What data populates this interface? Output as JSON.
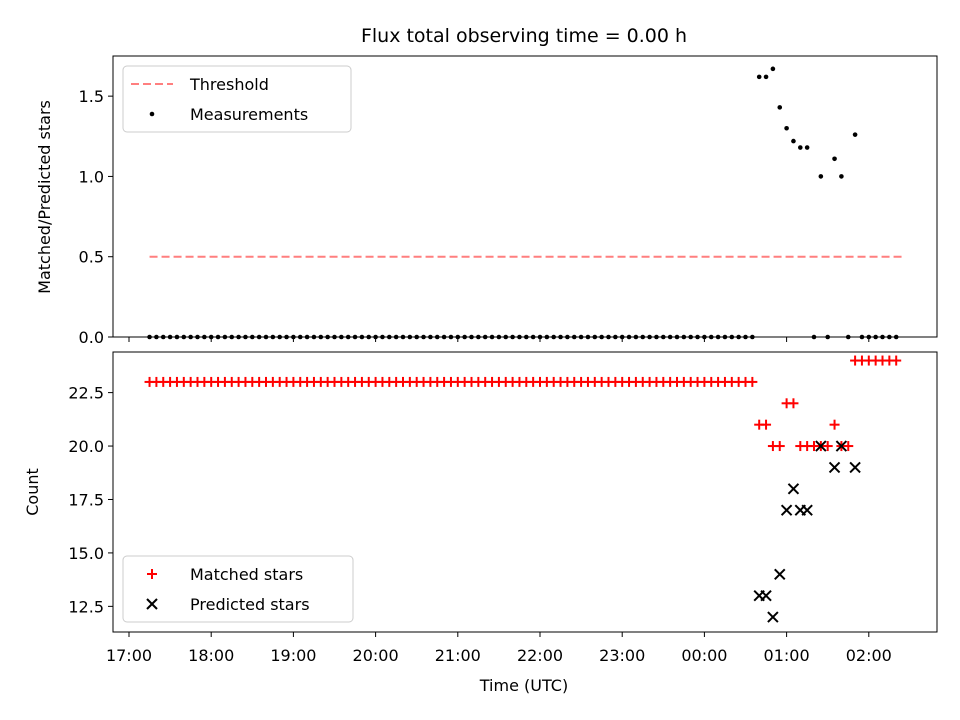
{
  "title": "Flux total observing time = 0.00 h",
  "chart_data": [
    {
      "type": "scatter",
      "ylabel": "Matched/Predicted stars",
      "ylim": [
        0,
        1.75
      ],
      "yticks": [
        "0.0",
        "0.5",
        "1.0",
        "1.5"
      ],
      "legend": {
        "position": "upper left",
        "entries": [
          "Threshold",
          "Measurements"
        ]
      },
      "threshold": {
        "name": "Threshold",
        "value": 0.5,
        "color": "#ff7f7f",
        "x_start": "17:15",
        "x_end": "02:25"
      },
      "measurements": {
        "name": "Measurements",
        "color": "#000000",
        "zero_run": {
          "start": "17:15",
          "end": "00:35",
          "step_minutes": 5,
          "value": 0
        },
        "points": [
          [
            "00:40",
            1.62
          ],
          [
            "00:45",
            1.62
          ],
          [
            "00:50",
            1.67
          ],
          [
            "00:55",
            1.43
          ],
          [
            "01:00",
            1.3
          ],
          [
            "01:05",
            1.22
          ],
          [
            "01:10",
            1.18
          ],
          [
            "01:15",
            1.18
          ],
          [
            "01:20",
            0
          ],
          [
            "01:25",
            1.0
          ],
          [
            "01:30",
            0
          ],
          [
            "01:35",
            1.11
          ],
          [
            "01:40",
            1.0
          ],
          [
            "01:45",
            0
          ],
          [
            "01:50",
            1.26
          ],
          [
            "01:55",
            0
          ],
          [
            "02:00",
            0
          ],
          [
            "02:05",
            0
          ],
          [
            "02:10",
            0
          ],
          [
            "02:15",
            0
          ],
          [
            "02:20",
            0
          ]
        ]
      }
    },
    {
      "type": "scatter",
      "xlabel": "Time (UTC)",
      "ylabel": "Count",
      "ylim": [
        11.3,
        24.4
      ],
      "yticks": [
        "12.5",
        "15.0",
        "17.5",
        "20.0",
        "22.5"
      ],
      "xticks": [
        "17:00",
        "18:00",
        "19:00",
        "20:00",
        "21:00",
        "22:00",
        "23:00",
        "00:00",
        "01:00",
        "02:00"
      ],
      "legend": {
        "position": "lower left",
        "entries": [
          "Matched stars",
          "Predicted stars"
        ]
      },
      "matched": {
        "name": "Matched stars",
        "color": "#ff0000",
        "marker": "plus",
        "constant_run": {
          "start": "17:15",
          "end": "00:35",
          "step_minutes": 5,
          "value": 23
        },
        "points": [
          [
            "00:40",
            21
          ],
          [
            "00:45",
            21
          ],
          [
            "00:50",
            20
          ],
          [
            "00:55",
            20
          ],
          [
            "01:00",
            22
          ],
          [
            "01:05",
            22
          ],
          [
            "01:10",
            20
          ],
          [
            "01:15",
            20
          ],
          [
            "01:20",
            20
          ],
          [
            "01:25",
            20
          ],
          [
            "01:30",
            20
          ],
          [
            "01:35",
            21
          ],
          [
            "01:40",
            20
          ],
          [
            "01:45",
            20
          ],
          [
            "01:50",
            24
          ],
          [
            "01:55",
            24
          ],
          [
            "02:00",
            24
          ],
          [
            "02:05",
            24
          ],
          [
            "02:10",
            24
          ],
          [
            "02:15",
            24
          ],
          [
            "02:20",
            24
          ]
        ]
      },
      "predicted": {
        "name": "Predicted stars",
        "color": "#000000",
        "marker": "x",
        "points": [
          [
            "00:40",
            13
          ],
          [
            "00:45",
            13
          ],
          [
            "00:50",
            12
          ],
          [
            "00:55",
            14
          ],
          [
            "01:00",
            17
          ],
          [
            "01:05",
            18
          ],
          [
            "01:10",
            17
          ],
          [
            "01:15",
            17
          ],
          [
            "01:25",
            20
          ],
          [
            "01:35",
            19
          ],
          [
            "01:40",
            20
          ],
          [
            "01:50",
            19
          ]
        ]
      }
    }
  ]
}
